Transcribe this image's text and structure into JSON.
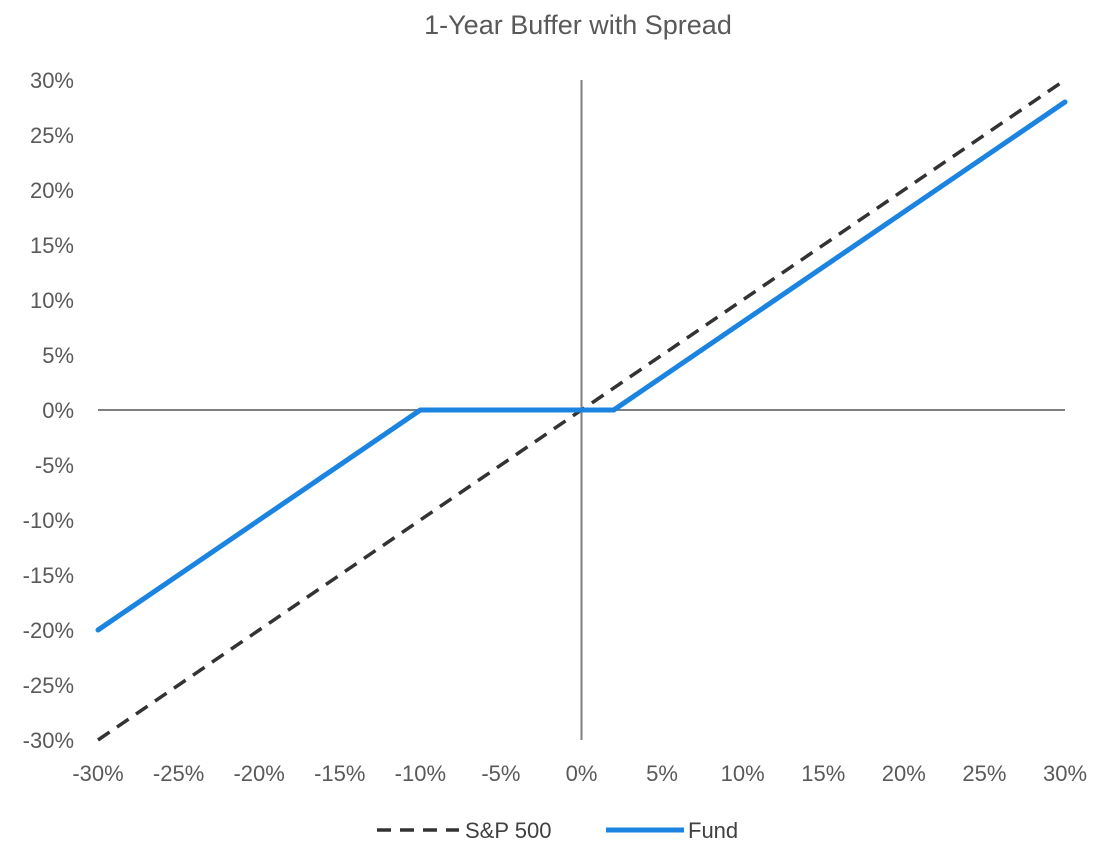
{
  "chart_data": {
    "type": "line",
    "title": "1-Year Buffer with Spread",
    "xlabel": "",
    "ylabel": "",
    "xlim": [
      -30,
      30
    ],
    "ylim": [
      -30,
      30
    ],
    "x_ticks": [
      -30,
      -25,
      -20,
      -15,
      -10,
      -5,
      0,
      5,
      10,
      15,
      20,
      25,
      30
    ],
    "y_ticks": [
      30,
      25,
      20,
      15,
      10,
      5,
      0,
      -5,
      -10,
      -15,
      -20,
      -25,
      -30
    ],
    "x_tick_labels": [
      "-30%",
      "-25%",
      "-20%",
      "-15%",
      "-10%",
      "-5%",
      "0%",
      "5%",
      "10%",
      "15%",
      "20%",
      "25%",
      "30%"
    ],
    "y_tick_labels": [
      "30%",
      "25%",
      "20%",
      "15%",
      "10%",
      "5%",
      "0%",
      "-5%",
      "-10%",
      "-15%",
      "-20%",
      "-25%",
      "-30%"
    ],
    "grid": false,
    "legend_position": "bottom",
    "series": [
      {
        "name": "S&P 500",
        "style": "dashed",
        "color": "#333333",
        "points": [
          [
            -30,
            -30
          ],
          [
            30,
            30
          ]
        ]
      },
      {
        "name": "Fund",
        "style": "solid",
        "color": "#1a84e0",
        "points": [
          [
            -30,
            -20
          ],
          [
            -10,
            0
          ],
          [
            2,
            0
          ],
          [
            30,
            28
          ]
        ]
      }
    ]
  }
}
